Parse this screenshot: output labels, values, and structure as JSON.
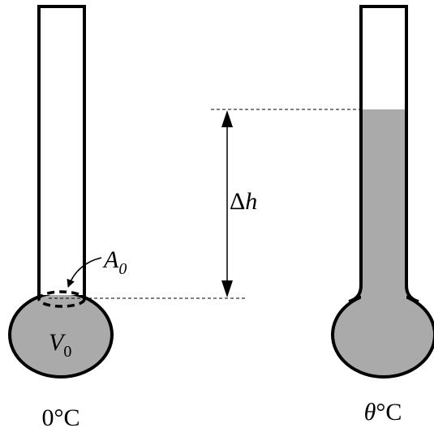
{
  "labels": {
    "area": {
      "symbol": "A",
      "subscript": "0"
    },
    "volume": {
      "symbol": "V",
      "subscript": "0"
    },
    "height_change": {
      "delta": "Δ",
      "symbol": "h"
    },
    "left_temperature": "0°C",
    "right_temperature": {
      "symbol": "θ",
      "unit": "°C"
    }
  }
}
